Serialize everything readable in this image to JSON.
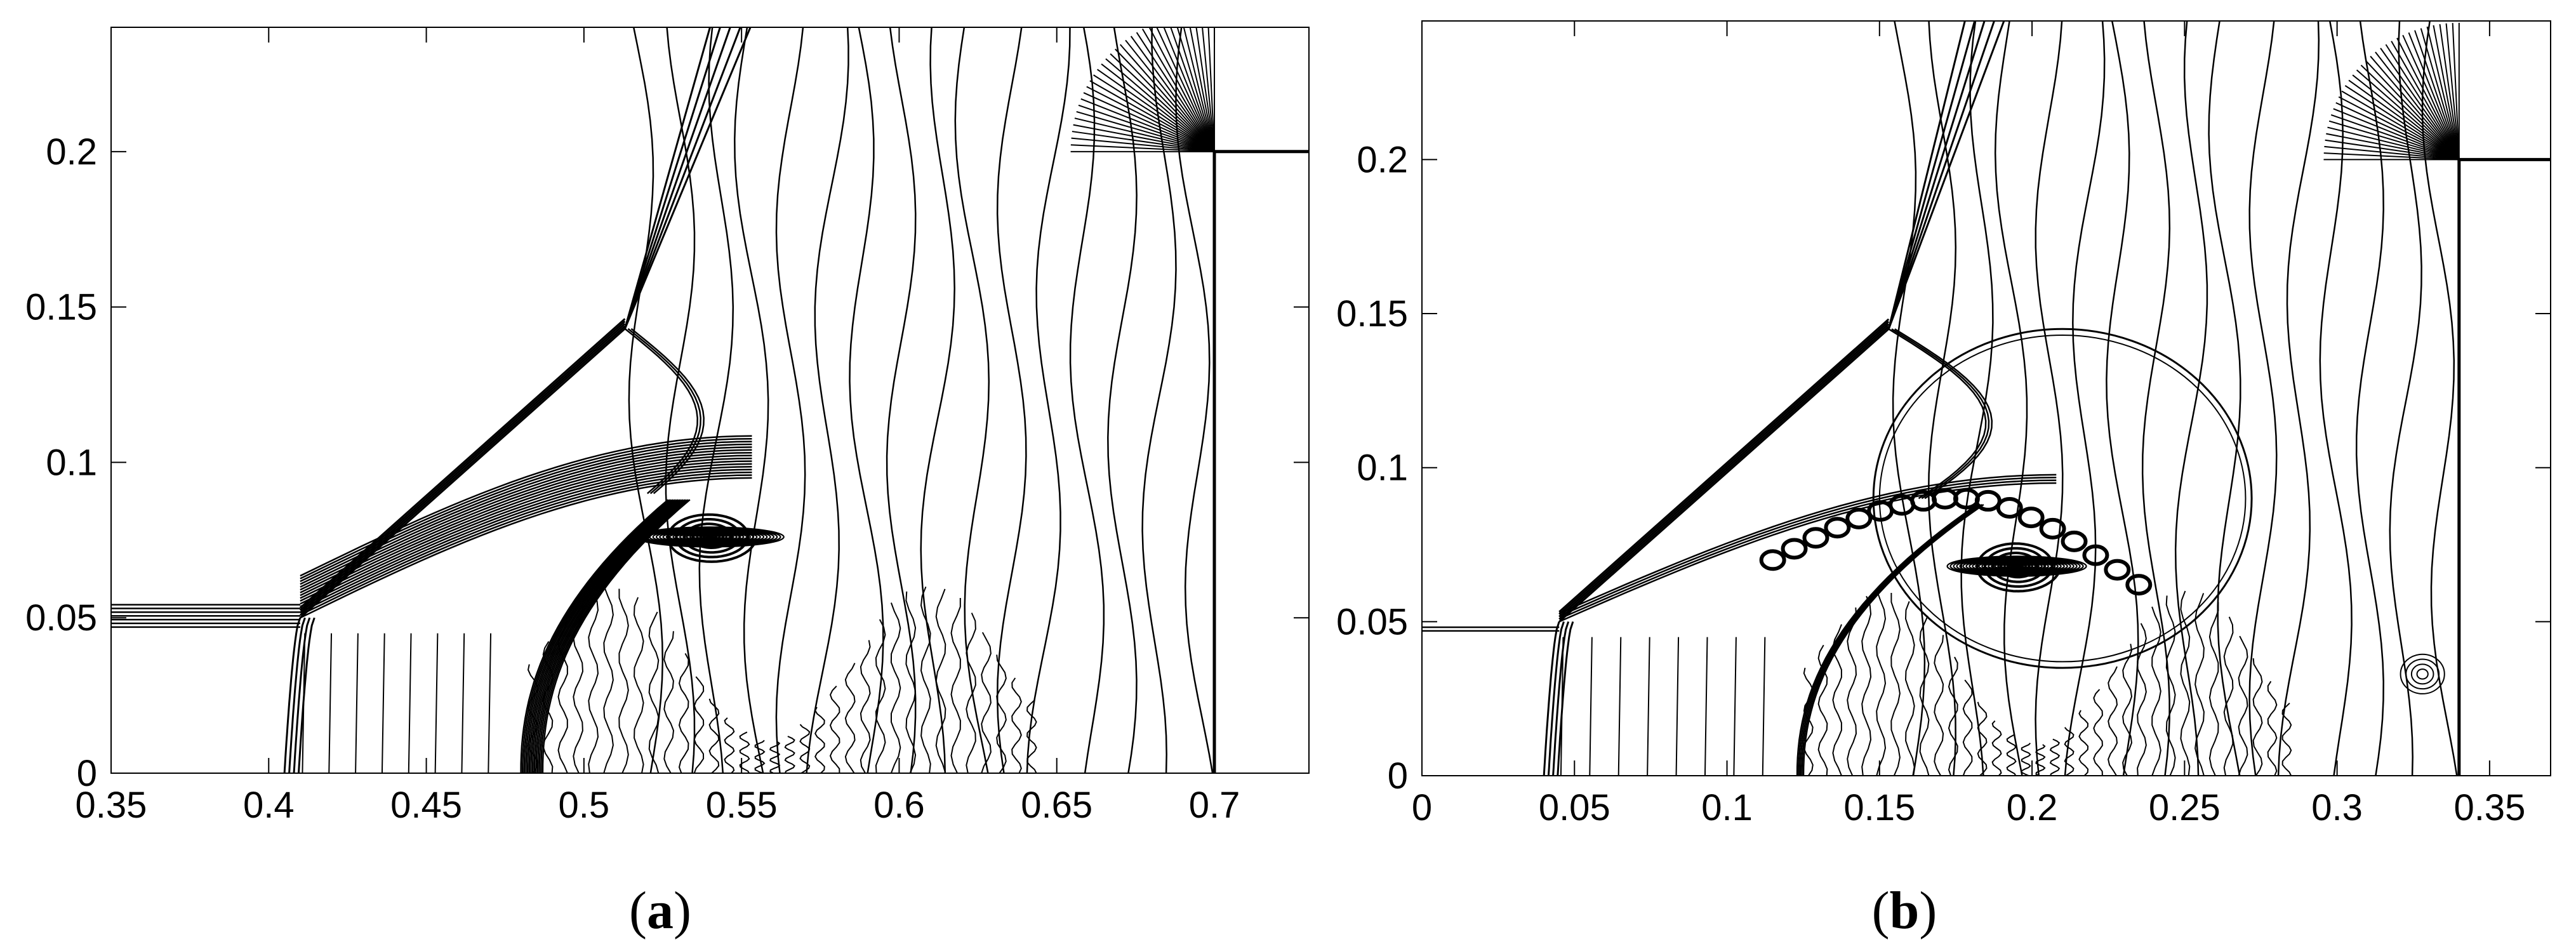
{
  "chart_data": [
    {
      "type": "contour",
      "panel_label": "a",
      "xlim": [
        0.35,
        0.73
      ],
      "ylim": [
        0,
        0.24
      ],
      "x_ticks": [
        0.35,
        0.4,
        0.45,
        0.5,
        0.55,
        0.6,
        0.65,
        0.7
      ],
      "x_tick_labels": [
        "0.35",
        "0.4",
        "0.45",
        "0.5",
        "0.55",
        "0.6",
        "0.65",
        "0.7"
      ],
      "y_ticks": [
        0,
        0.05,
        0.1,
        0.15,
        0.2
      ],
      "y_tick_labels": [
        "0",
        "0.05",
        "0.1",
        "0.15",
        "0.2"
      ],
      "wedge": {
        "x": 0.7,
        "y_top": 0.2
      },
      "triple_point": {
        "x": 0.513,
        "y": 0.143
      },
      "bend_point": {
        "x": 0.41,
        "y": 0.05
      },
      "incident_shock_top": {
        "x": 0.54,
        "y": 0.24
      },
      "mach_stem_foot": {
        "x": 0.48,
        "y": 0
      },
      "reflected_foot": {
        "x": 0.405,
        "y": 0
      },
      "vortex_center": {
        "x": 0.54,
        "y": 0.076
      },
      "grid": false
    },
    {
      "type": "contour",
      "panel_label": "b",
      "xlim": [
        0,
        0.37
      ],
      "ylim": [
        0,
        0.245
      ],
      "x_ticks": [
        0,
        0.05,
        0.1,
        0.15,
        0.2,
        0.25,
        0.3,
        0.35
      ],
      "x_tick_labels": [
        "0",
        "0.05",
        "0.1",
        "0.15",
        "0.2",
        "0.25",
        "0.3",
        "0.35"
      ],
      "y_ticks": [
        0,
        0.05,
        0.1,
        0.15,
        0.2
      ],
      "y_tick_labels": [
        "0",
        "0.05",
        "0.1",
        "0.15",
        "0.2"
      ],
      "wedge": {
        "x": 0.34,
        "y_top": 0.2
      },
      "triple_point": {
        "x": 0.153,
        "y": 0.145
      },
      "bend_point": {
        "x": 0.045,
        "y": 0.05
      },
      "incident_shock_top": {
        "x": 0.178,
        "y": 0.245
      },
      "mach_stem_foot": {
        "x": 0.123,
        "y": 0
      },
      "reflected_foot": {
        "x": 0.04,
        "y": 0
      },
      "vortex_center": {
        "x": 0.195,
        "y": 0.068
      },
      "grid": false
    }
  ]
}
